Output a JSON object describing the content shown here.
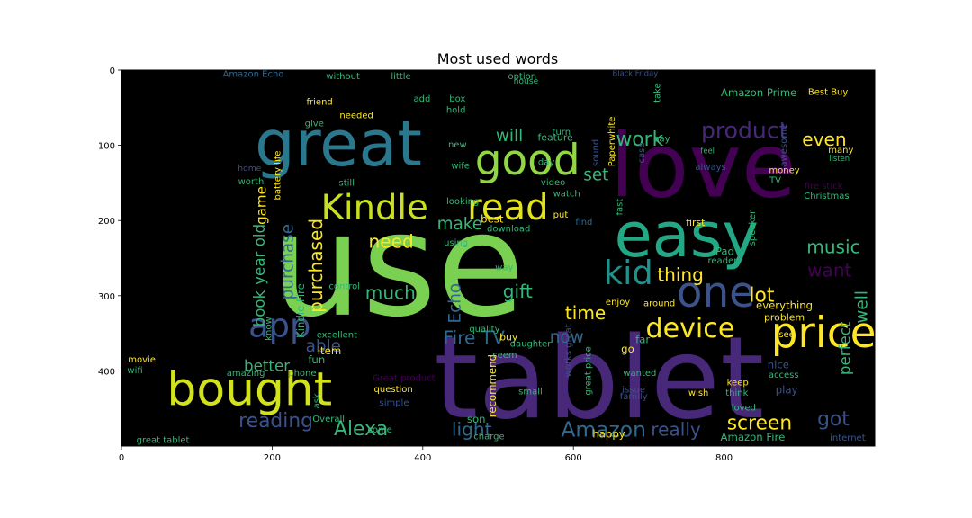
{
  "chart_data": {
    "type": "wordcloud",
    "title": "Most used words",
    "xlim": [
      0,
      1000
    ],
    "ylim": [
      500,
      0
    ],
    "xticks": [
      0,
      200,
      400,
      600,
      800
    ],
    "yticks": [
      0,
      100,
      200,
      300,
      400
    ],
    "background": "#000000",
    "words": [
      {
        "text": "use",
        "x": 367,
        "y": 260,
        "size": 190,
        "color": "#7ad151"
      },
      {
        "text": "tablet",
        "x": 634,
        "y": 410,
        "size": 150,
        "color": "#482878"
      },
      {
        "text": "love",
        "x": 772,
        "y": 128,
        "size": 118,
        "color": "#440154"
      },
      {
        "text": "great",
        "x": 288,
        "y": 98,
        "size": 84,
        "color": "#2a788e"
      },
      {
        "text": "easy",
        "x": 750,
        "y": 220,
        "size": 82,
        "color": "#22a884"
      },
      {
        "text": "bought",
        "x": 170,
        "y": 425,
        "size": 62,
        "color": "#d2e21b"
      },
      {
        "text": "good",
        "x": 539,
        "y": 120,
        "size": 56,
        "color": "#90d743"
      },
      {
        "text": "price",
        "x": 932,
        "y": 350,
        "size": 56,
        "color": "#fde725"
      },
      {
        "text": "one",
        "x": 789,
        "y": 296,
        "size": 56,
        "color": "#3b528b"
      },
      {
        "text": "read",
        "x": 513,
        "y": 183,
        "size": 48,
        "color": "#e2e418"
      },
      {
        "text": "Kindle",
        "x": 336,
        "y": 183,
        "size": 46,
        "color": "#c8e020"
      },
      {
        "text": "kid",
        "x": 673,
        "y": 270,
        "size": 44,
        "color": "#21918c"
      },
      {
        "text": "app",
        "x": 210,
        "y": 340,
        "size": 44,
        "color": "#3b528b"
      },
      {
        "text": "device",
        "x": 755,
        "y": 344,
        "size": 36,
        "color": "#fde725"
      },
      {
        "text": "product",
        "x": 827,
        "y": 80,
        "size": 30,
        "color": "#482878"
      },
      {
        "text": "Amazon",
        "x": 640,
        "y": 478,
        "size": 28,
        "color": "#31688e"
      },
      {
        "text": "Alexa",
        "x": 318,
        "y": 478,
        "size": 26,
        "color": "#35b779"
      },
      {
        "text": "work",
        "x": 688,
        "y": 93,
        "size": 26,
        "color": "#35b779"
      },
      {
        "text": "lot",
        "x": 850,
        "y": 300,
        "size": 26,
        "color": "#fde725"
      },
      {
        "text": "screen",
        "x": 847,
        "y": 470,
        "size": 26,
        "color": "#fde725"
      },
      {
        "text": "got",
        "x": 945,
        "y": 465,
        "size": 26,
        "color": "#3b528b"
      },
      {
        "text": "reading",
        "x": 205,
        "y": 467,
        "size": 26,
        "color": "#3b528b"
      },
      {
        "text": "music",
        "x": 945,
        "y": 235,
        "size": 24,
        "color": "#35b779"
      },
      {
        "text": "time",
        "x": 616,
        "y": 323,
        "size": 24,
        "color": "#fde725"
      },
      {
        "text": "much",
        "x": 357,
        "y": 296,
        "size": 24,
        "color": "#35b779"
      },
      {
        "text": "need",
        "x": 358,
        "y": 228,
        "size": 24,
        "color": "#fde725"
      },
      {
        "text": "gift",
        "x": 526,
        "y": 294,
        "size": 24,
        "color": "#35b779"
      },
      {
        "text": "really",
        "x": 736,
        "y": 478,
        "size": 24,
        "color": "#3b528b"
      },
      {
        "text": "want",
        "x": 940,
        "y": 266,
        "size": 24,
        "color": "#440154"
      },
      {
        "text": "even",
        "x": 933,
        "y": 92,
        "size": 24,
        "color": "#fde725"
      },
      {
        "text": "light",
        "x": 465,
        "y": 478,
        "size": 24,
        "color": "#31688e"
      },
      {
        "text": "Fire TV",
        "x": 468,
        "y": 356,
        "size": 24,
        "color": "#31688e"
      },
      {
        "text": "thing",
        "x": 742,
        "y": 272,
        "size": 24,
        "color": "#fde725"
      },
      {
        "text": "will",
        "x": 515,
        "y": 88,
        "size": 22,
        "color": "#35b779"
      },
      {
        "text": "set",
        "x": 630,
        "y": 140,
        "size": 22,
        "color": "#35b779"
      },
      {
        "text": "make",
        "x": 449,
        "y": 205,
        "size": 22,
        "color": "#35b779"
      },
      {
        "text": "now",
        "x": 591,
        "y": 356,
        "size": 22,
        "color": "#31688e"
      },
      {
        "text": "able",
        "x": 268,
        "y": 368,
        "size": 22,
        "color": "#3b528b"
      },
      {
        "text": "better",
        "x": 193,
        "y": 393,
        "size": 20,
        "color": "#35b779"
      },
      {
        "text": "well",
        "x": 983,
        "y": 315,
        "size": 22,
        "color": "#35b779",
        "rotate": true
      },
      {
        "text": "perfect",
        "x": 960,
        "y": 370,
        "size": 20,
        "color": "#35b779",
        "rotate": true
      },
      {
        "text": "Echo",
        "x": 443,
        "y": 310,
        "size": 22,
        "color": "#31688e",
        "rotate": true
      },
      {
        "text": "purchased",
        "x": 258,
        "y": 260,
        "size": 24,
        "color": "#fde725",
        "rotate": true
      },
      {
        "text": "purchase",
        "x": 221,
        "y": 255,
        "size": 22,
        "color": "#31688e",
        "rotate": true
      },
      {
        "text": "game",
        "x": 186,
        "y": 180,
        "size": 18,
        "color": "#fde725",
        "rotate": true
      },
      {
        "text": "book",
        "x": 183,
        "y": 317,
        "size": 20,
        "color": "#35b779",
        "rotate": true
      },
      {
        "text": "year old",
        "x": 183,
        "y": 245,
        "size": 20,
        "color": "#35b779",
        "rotate": true
      },
      {
        "text": "Kindle Fire",
        "x": 238,
        "y": 320,
        "size": 14,
        "color": "#35b779",
        "rotate": true
      },
      {
        "text": "battery life",
        "x": 208,
        "y": 140,
        "size": 12,
        "color": "#fde725",
        "rotate": true
      },
      {
        "text": "worth",
        "x": 172,
        "y": 149,
        "size": 12,
        "color": "#35b779"
      },
      {
        "text": "home",
        "x": 170,
        "y": 131,
        "size": 11,
        "color": "#3b528b"
      },
      {
        "text": "Amazon Echo",
        "x": 175,
        "y": 6,
        "size": 12,
        "color": "#31688e"
      },
      {
        "text": "without",
        "x": 294,
        "y": 9,
        "size": 12,
        "color": "#35b779"
      },
      {
        "text": "little",
        "x": 371,
        "y": 9,
        "size": 12,
        "color": "#35b779"
      },
      {
        "text": "option",
        "x": 532,
        "y": 9,
        "size": 12,
        "color": "#35b779"
      },
      {
        "text": "house",
        "x": 537,
        "y": 15,
        "size": 11,
        "color": "#35b779"
      },
      {
        "text": "friend",
        "x": 263,
        "y": 43,
        "size": 12,
        "color": "#fde725"
      },
      {
        "text": "give",
        "x": 256,
        "y": 72,
        "size": 12,
        "color": "#35b779"
      },
      {
        "text": "needed",
        "x": 312,
        "y": 61,
        "size": 12,
        "color": "#fde725"
      },
      {
        "text": "add",
        "x": 399,
        "y": 39,
        "size": 12,
        "color": "#35b779"
      },
      {
        "text": "box",
        "x": 446,
        "y": 39,
        "size": 12,
        "color": "#35b779"
      },
      {
        "text": "hold",
        "x": 444,
        "y": 54,
        "size": 12,
        "color": "#35b779"
      },
      {
        "text": "new",
        "x": 446,
        "y": 100,
        "size": 12,
        "color": "#35b779"
      },
      {
        "text": "wife",
        "x": 450,
        "y": 128,
        "size": 12,
        "color": "#35b779"
      },
      {
        "text": "feature",
        "x": 576,
        "y": 90,
        "size": 13,
        "color": "#35b779"
      },
      {
        "text": "turn",
        "x": 584,
        "y": 83,
        "size": 12,
        "color": "#35b779"
      },
      {
        "text": "day",
        "x": 564,
        "y": 123,
        "size": 12,
        "color": "#35b779"
      },
      {
        "text": "video",
        "x": 573,
        "y": 150,
        "size": 12,
        "color": "#35b779"
      },
      {
        "text": "watch",
        "x": 591,
        "y": 165,
        "size": 12,
        "color": "#35b779"
      },
      {
        "text": "put",
        "x": 583,
        "y": 193,
        "size": 12,
        "color": "#fde725"
      },
      {
        "text": "find",
        "x": 614,
        "y": 203,
        "size": 12,
        "color": "#31688e"
      },
      {
        "text": "still",
        "x": 299,
        "y": 151,
        "size": 12,
        "color": "#35b779"
      },
      {
        "text": "looking",
        "x": 453,
        "y": 175,
        "size": 12,
        "color": "#35b779"
      },
      {
        "text": "using",
        "x": 444,
        "y": 230,
        "size": 12,
        "color": "#35b779"
      },
      {
        "text": "best",
        "x": 492,
        "y": 198,
        "size": 14,
        "color": "#fde725"
      },
      {
        "text": "download",
        "x": 514,
        "y": 212,
        "size": 12,
        "color": "#35b779"
      },
      {
        "text": "way",
        "x": 508,
        "y": 263,
        "size": 12,
        "color": "#35b779"
      },
      {
        "text": "quality",
        "x": 482,
        "y": 345,
        "size": 12,
        "color": "#35b779"
      },
      {
        "text": "buy",
        "x": 514,
        "y": 355,
        "size": 13,
        "color": "#fde725"
      },
      {
        "text": "seem",
        "x": 509,
        "y": 380,
        "size": 12,
        "color": "#35b779"
      },
      {
        "text": "item",
        "x": 276,
        "y": 373,
        "size": 14,
        "color": "#fde725"
      },
      {
        "text": "fun",
        "x": 259,
        "y": 385,
        "size": 14,
        "color": "#35b779"
      },
      {
        "text": "excellent",
        "x": 286,
        "y": 353,
        "size": 12,
        "color": "#35b779"
      },
      {
        "text": "control",
        "x": 296,
        "y": 288,
        "size": 12,
        "color": "#35b779"
      },
      {
        "text": "movie",
        "x": 27,
        "y": 386,
        "size": 12,
        "color": "#fde725"
      },
      {
        "text": "wifi",
        "x": 18,
        "y": 400,
        "size": 12,
        "color": "#35b779"
      },
      {
        "text": "amazing",
        "x": 165,
        "y": 404,
        "size": 12,
        "color": "#35b779"
      },
      {
        "text": "phone",
        "x": 240,
        "y": 404,
        "size": 12,
        "color": "#35b779"
      },
      {
        "text": "know",
        "x": 196,
        "y": 344,
        "size": 12,
        "color": "#35b779",
        "rotate": true
      },
      {
        "text": "ask",
        "x": 260,
        "y": 440,
        "size": 12,
        "color": "#35b779",
        "rotate": true
      },
      {
        "text": "Overall",
        "x": 275,
        "y": 465,
        "size": 12,
        "color": "#35b779"
      },
      {
        "text": "come",
        "x": 343,
        "y": 479,
        "size": 12,
        "color": "#35b779"
      },
      {
        "text": "great tablet",
        "x": 55,
        "y": 493,
        "size": 12,
        "color": "#35b779"
      },
      {
        "text": "Great product",
        "x": 375,
        "y": 410,
        "size": 12,
        "color": "#440154"
      },
      {
        "text": "question",
        "x": 361,
        "y": 425,
        "size": 12,
        "color": "#fde725"
      },
      {
        "text": "simple",
        "x": 362,
        "y": 443,
        "size": 12,
        "color": "#3b528b"
      },
      {
        "text": "small",
        "x": 543,
        "y": 428,
        "size": 12,
        "color": "#35b779"
      },
      {
        "text": "son",
        "x": 471,
        "y": 464,
        "size": 14,
        "color": "#35b779"
      },
      {
        "text": "charge",
        "x": 488,
        "y": 488,
        "size": 12,
        "color": "#35b779"
      },
      {
        "text": "recommend",
        "x": 492,
        "y": 420,
        "size": 14,
        "color": "#fde725",
        "rotate": true
      },
      {
        "text": "daughter",
        "x": 543,
        "y": 365,
        "size": 12,
        "color": "#35b779"
      },
      {
        "text": "happy",
        "x": 647,
        "y": 484,
        "size": 14,
        "color": "#fde725"
      },
      {
        "text": "family",
        "x": 680,
        "y": 435,
        "size": 12,
        "color": "#3b528b"
      },
      {
        "text": "issue",
        "x": 680,
        "y": 426,
        "size": 12,
        "color": "#3b528b"
      },
      {
        "text": "wanted",
        "x": 688,
        "y": 404,
        "size": 12,
        "color": "#35b779"
      },
      {
        "text": "go",
        "x": 672,
        "y": 371,
        "size": 14,
        "color": "#fde725"
      },
      {
        "text": "far",
        "x": 692,
        "y": 358,
        "size": 14,
        "color": "#35b779"
      },
      {
        "text": "around",
        "x": 714,
        "y": 311,
        "size": 12,
        "color": "#fde725"
      },
      {
        "text": "enjoy",
        "x": 659,
        "y": 309,
        "size": 12,
        "color": "#fde725"
      },
      {
        "text": "reader",
        "x": 798,
        "y": 254,
        "size": 12,
        "color": "#35b779"
      },
      {
        "text": "first",
        "x": 762,
        "y": 203,
        "size": 13,
        "color": "#fde725"
      },
      {
        "text": "iPad",
        "x": 799,
        "y": 241,
        "size": 14,
        "color": "#35b779"
      },
      {
        "text": "everything",
        "x": 880,
        "y": 313,
        "size": 14,
        "color": "#fde725"
      },
      {
        "text": "problem",
        "x": 880,
        "y": 329,
        "size": 13,
        "color": "#fde725"
      },
      {
        "text": "see",
        "x": 883,
        "y": 352,
        "size": 12,
        "color": "#fde725"
      },
      {
        "text": "nice",
        "x": 872,
        "y": 392,
        "size": 14,
        "color": "#3b528b"
      },
      {
        "text": "access",
        "x": 879,
        "y": 406,
        "size": 12,
        "color": "#35b779"
      },
      {
        "text": "play",
        "x": 883,
        "y": 425,
        "size": 14,
        "color": "#3b528b"
      },
      {
        "text": "keep",
        "x": 818,
        "y": 416,
        "size": 12,
        "color": "#fde725"
      },
      {
        "text": "think",
        "x": 817,
        "y": 430,
        "size": 12,
        "color": "#35b779"
      },
      {
        "text": "loved",
        "x": 826,
        "y": 450,
        "size": 12,
        "color": "#35b779"
      },
      {
        "text": "wish",
        "x": 766,
        "y": 430,
        "size": 12,
        "color": "#fde725"
      },
      {
        "text": "Amazon Fire",
        "x": 838,
        "y": 488,
        "size": 14,
        "color": "#35b779"
      },
      {
        "text": "Amazon Prime",
        "x": 846,
        "y": 30,
        "size": 14,
        "color": "#35b779"
      },
      {
        "text": "Best Buy",
        "x": 938,
        "y": 30,
        "size": 12,
        "color": "#fde725"
      },
      {
        "text": "Christmas",
        "x": 936,
        "y": 168,
        "size": 12,
        "color": "#35b779"
      },
      {
        "text": "many",
        "x": 955,
        "y": 107,
        "size": 12,
        "color": "#fde725"
      },
      {
        "text": "money",
        "x": 880,
        "y": 134,
        "size": 12,
        "color": "#fde725"
      },
      {
        "text": "TV",
        "x": 868,
        "y": 147,
        "size": 12,
        "color": "#35b779"
      },
      {
        "text": "fire stick",
        "x": 932,
        "y": 155,
        "size": 12,
        "color": "#440154"
      },
      {
        "text": "say",
        "x": 718,
        "y": 92,
        "size": 12,
        "color": "#35b779"
      },
      {
        "text": "always",
        "x": 782,
        "y": 130,
        "size": 12,
        "color": "#3b528b"
      },
      {
        "text": "feel",
        "x": 778,
        "y": 107,
        "size": 10,
        "color": "#35b779"
      },
      {
        "text": "listen",
        "x": 953,
        "y": 117,
        "size": 10,
        "color": "#35b779"
      },
      {
        "text": "awesome",
        "x": 880,
        "y": 100,
        "size": 12,
        "color": "#3b528b",
        "rotate": true
      },
      {
        "text": "Black Friday",
        "x": 682,
        "y": 4,
        "size": 10,
        "color": "#3b528b"
      },
      {
        "text": "sound",
        "x": 630,
        "y": 110,
        "size": 12,
        "color": "#3b528b",
        "rotate": true
      },
      {
        "text": "Paperwhite",
        "x": 652,
        "y": 95,
        "size": 12,
        "color": "#fde725",
        "rotate": true
      },
      {
        "text": "fast",
        "x": 662,
        "y": 182,
        "size": 12,
        "color": "#35b779",
        "rotate": true
      },
      {
        "text": "case",
        "x": 691,
        "y": 110,
        "size": 12,
        "color": "#3b528b",
        "rotate": true
      },
      {
        "text": "take",
        "x": 712,
        "y": 30,
        "size": 12,
        "color": "#35b779",
        "rotate": true
      },
      {
        "text": "speaker",
        "x": 838,
        "y": 210,
        "size": 12,
        "color": "#35b779",
        "rotate": true
      },
      {
        "text": "works great",
        "x": 594,
        "y": 373,
        "size": 12,
        "color": "#3b528b",
        "rotate": true
      },
      {
        "text": "great price",
        "x": 620,
        "y": 400,
        "size": 12,
        "color": "#35b779",
        "rotate": true
      },
      {
        "text": "internet",
        "x": 964,
        "y": 490,
        "size": 12,
        "color": "#3b528b"
      }
    ]
  }
}
